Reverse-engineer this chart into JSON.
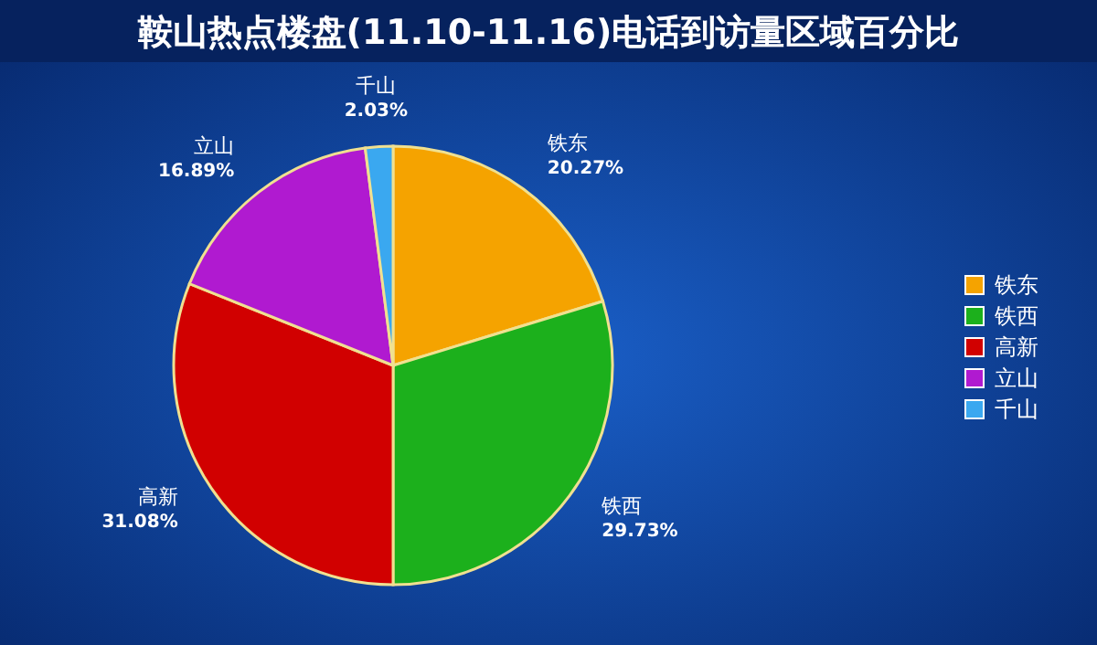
{
  "chart_data": {
    "type": "pie",
    "title": "鞍山热点楼盘(11.10-11.16)电话到访量区域百分比",
    "categories": [
      "铁东",
      "铁西",
      "高新",
      "立山",
      "千山"
    ],
    "values": [
      20.27,
      29.73,
      31.08,
      16.89,
      2.03
    ],
    "value_labels": [
      "20.27%",
      "29.73%",
      "31.08%",
      "16.89%",
      "2.03%"
    ],
    "colors": [
      "#f5a300",
      "#1cb01c",
      "#d10000",
      "#b01ad0",
      "#3aa8f0"
    ],
    "legend": "right"
  }
}
